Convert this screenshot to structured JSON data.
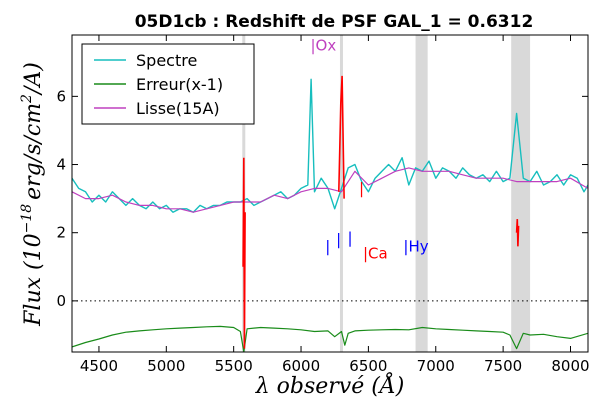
{
  "chart_data": {
    "type": "line",
    "title": "05D1cb : Redshift de PSF GAL_1 = 0.6312",
    "xlabel": "λ observé (Å)",
    "ylabel": "Flux (10^-18 erg/s/cm²/A)",
    "ylabel_parts": {
      "a": "Flux (10",
      "exp": "−18",
      "b": "erg/s/cm",
      "exp2": "2",
      "c": "/A)"
    },
    "xlim": [
      4300,
      8130
    ],
    "ylim": [
      -1.5,
      7.8
    ],
    "xticks": [
      4500,
      5000,
      5500,
      6000,
      6500,
      7000,
      7500,
      8000
    ],
    "yticks": [
      0,
      2,
      4,
      6
    ],
    "legend_position": "top-left",
    "zero_line": 0,
    "shaded_bands": [
      [
        6850,
        6940
      ],
      [
        7560,
        7700
      ]
    ],
    "thin_bands": [
      5575,
      6300
    ],
    "series": [
      {
        "name": "Spectre",
        "color": "#17bebe",
        "x": [
          4300,
          4350,
          4400,
          4450,
          4500,
          4550,
          4600,
          4650,
          4700,
          4750,
          4800,
          4850,
          4900,
          4950,
          5000,
          5050,
          5100,
          5150,
          5200,
          5250,
          5300,
          5350,
          5400,
          5450,
          5500,
          5550,
          5600,
          5650,
          5700,
          5750,
          5800,
          5850,
          5900,
          5950,
          6000,
          6050,
          6075,
          6100,
          6150,
          6200,
          6250,
          6300,
          6350,
          6400,
          6450,
          6500,
          6550,
          6600,
          6650,
          6700,
          6750,
          6800,
          6850,
          6900,
          6950,
          7000,
          7050,
          7100,
          7150,
          7200,
          7250,
          7300,
          7350,
          7400,
          7450,
          7500,
          7550,
          7600,
          7650,
          7700,
          7750,
          7800,
          7850,
          7900,
          7950,
          8000,
          8050,
          8100,
          8130
        ],
        "y": [
          3.6,
          3.3,
          3.2,
          2.9,
          3.1,
          2.9,
          3.2,
          3.0,
          2.8,
          3.0,
          2.8,
          2.7,
          2.9,
          2.7,
          2.8,
          2.6,
          2.7,
          2.7,
          2.6,
          2.8,
          2.7,
          2.8,
          2.8,
          2.9,
          2.9,
          2.9,
          3.0,
          2.8,
          2.9,
          3.0,
          3.1,
          3.2,
          3.0,
          3.1,
          3.3,
          3.4,
          6.5,
          3.2,
          3.6,
          3.3,
          2.7,
          3.3,
          3.9,
          4.0,
          3.5,
          3.2,
          3.6,
          3.8,
          4.0,
          3.8,
          4.2,
          3.4,
          3.9,
          3.8,
          4.1,
          3.6,
          3.9,
          3.8,
          3.6,
          3.9,
          3.7,
          3.6,
          3.7,
          3.5,
          3.8,
          3.5,
          3.6,
          5.5,
          3.6,
          3.5,
          3.8,
          3.4,
          3.5,
          3.7,
          3.4,
          3.7,
          3.6,
          3.2,
          3.4
        ]
      },
      {
        "name": "Erreur(x-1)",
        "color": "#1a8c1a",
        "x": [
          4300,
          4400,
          4500,
          4600,
          4700,
          4800,
          4900,
          5000,
          5100,
          5200,
          5300,
          5400,
          5500,
          5550,
          5575,
          5600,
          5700,
          5800,
          5900,
          6000,
          6100,
          6200,
          6250,
          6300,
          6325,
          6350,
          6400,
          6500,
          6600,
          6700,
          6800,
          6900,
          7000,
          7100,
          7200,
          7300,
          7400,
          7500,
          7550,
          7600,
          7650,
          7700,
          7800,
          7900,
          8000,
          8130
        ],
        "y": [
          -1.35,
          -1.22,
          -1.12,
          -1.0,
          -0.92,
          -0.88,
          -0.85,
          -0.82,
          -0.8,
          -0.78,
          -0.76,
          -0.75,
          -0.78,
          -0.9,
          -1.5,
          -0.82,
          -0.78,
          -0.8,
          -0.82,
          -0.85,
          -0.9,
          -0.88,
          -1.05,
          -0.9,
          -1.3,
          -0.95,
          -0.88,
          -0.86,
          -0.85,
          -0.84,
          -0.85,
          -0.78,
          -0.82,
          -0.84,
          -0.86,
          -0.88,
          -0.9,
          -0.92,
          -1.0,
          -1.4,
          -0.95,
          -1.0,
          -0.98,
          -1.05,
          -1.1,
          -0.95
        ]
      },
      {
        "name": "Lisse(15A)",
        "color": "#bf40bf",
        "x": [
          4300,
          4400,
          4500,
          4600,
          4700,
          4800,
          4900,
          5000,
          5100,
          5200,
          5300,
          5400,
          5500,
          5600,
          5700,
          5800,
          5900,
          6000,
          6100,
          6200,
          6300,
          6400,
          6500,
          6600,
          6700,
          6800,
          6900,
          7000,
          7100,
          7200,
          7300,
          7400,
          7500,
          7600,
          7700,
          7800,
          7900,
          8000,
          8130
        ],
        "y": [
          3.2,
          3.0,
          3.0,
          3.1,
          2.9,
          2.8,
          2.8,
          2.7,
          2.7,
          2.6,
          2.7,
          2.8,
          2.9,
          2.9,
          2.9,
          3.1,
          3.0,
          3.2,
          3.3,
          3.3,
          3.2,
          3.8,
          3.4,
          3.6,
          3.8,
          3.9,
          3.8,
          3.8,
          3.8,
          3.7,
          3.6,
          3.6,
          3.6,
          3.5,
          3.5,
          3.5,
          3.5,
          3.6,
          3.3
        ]
      }
    ],
    "red_segments": [
      {
        "x": [
          5570,
          5575,
          5580,
          5585
        ],
        "y": [
          1.0,
          4.2,
          -1.4,
          2.6
        ]
      },
      {
        "x": [
          6280,
          6295,
          6305,
          6320
        ],
        "y": [
          3.2,
          5.8,
          6.6,
          3.0
        ]
      },
      {
        "x": [
          7600,
          7605,
          7610,
          7615
        ],
        "y": [
          2.0,
          2.4,
          1.6,
          2.2
        ]
      }
    ],
    "annotations": [
      {
        "text": "|Ox",
        "x": 6070,
        "y": 7.35,
        "color": "#bf40bf"
      },
      {
        "text": "|",
        "x": 6180,
        "y": 1.45,
        "color": "#0000ff"
      },
      {
        "text": "|",
        "x": 6260,
        "y": 1.65,
        "color": "#0000ff"
      },
      {
        "text": "|",
        "x": 6345,
        "y": 1.7,
        "color": "#0000ff"
      },
      {
        "text": "|",
        "x": 6430,
        "y": 3.15,
        "color": "#ff0000"
      },
      {
        "text": "|Ca",
        "x": 6460,
        "y": 1.25,
        "color": "#ff0000"
      },
      {
        "text": "|Hy",
        "x": 6760,
        "y": 1.45,
        "color": "#0000ff"
      }
    ]
  }
}
